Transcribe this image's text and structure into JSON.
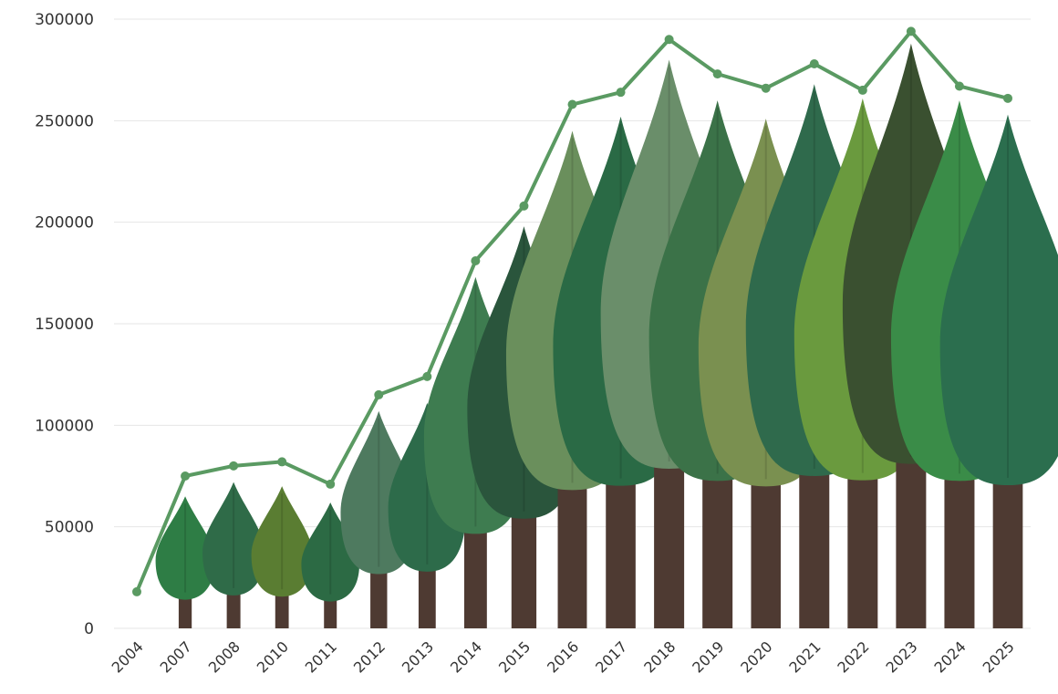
{
  "chart_data": {
    "type": "line",
    "title": "",
    "xlabel": "",
    "ylabel": "",
    "categories": [
      "2004",
      "2007",
      "2008",
      "2010",
      "2011",
      "2012",
      "2013",
      "2014",
      "2015",
      "2016",
      "2017",
      "2018",
      "2019",
      "2020",
      "2021",
      "2022",
      "2023",
      "2024",
      "2025"
    ],
    "series": [
      {
        "values": [
          18000,
          75000,
          80000,
          82000,
          71000,
          115000,
          124000,
          181000,
          208000,
          258000,
          264000,
          290000,
          273000,
          266000,
          278000,
          265000,
          294000,
          267000,
          261000
        ]
      }
    ],
    "tree_heights": [
      0,
      65000,
      72000,
      70000,
      62000,
      107000,
      111000,
      173000,
      198000,
      245000,
      252000,
      280000,
      260000,
      251000,
      268000,
      261000,
      288000,
      260000,
      253000
    ],
    "ylim": [
      0,
      300000
    ],
    "yticks": [
      0,
      50000,
      100000,
      150000,
      200000,
      250000,
      300000
    ],
    "grid": true,
    "legend": "none",
    "colors": {
      "line": "#5a9a62",
      "grid": "#e6e6e6",
      "trees": [
        "#2e7d45",
        "#2f6b48",
        "#5a7d32",
        "#2c6a44",
        "#4e7a5f",
        "#2d6b4a",
        "#3e7c50",
        "#2a553c",
        "#6a8f5c",
        "#2a6a45",
        "#6a8e6a",
        "#3b7248",
        "#7a9050",
        "#2f6a4c",
        "#6a9a3e",
        "#3a5030",
        "#3a8c48",
        "#2b6e4e"
      ],
      "trunk": "#4e3a32"
    }
  }
}
